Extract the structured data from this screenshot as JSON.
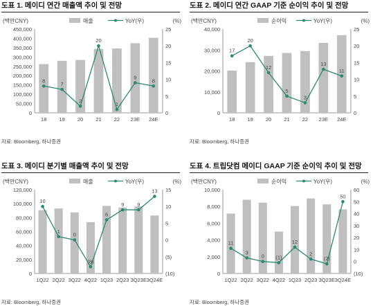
{
  "panels": [
    {
      "title": "도표 1. 메이디 연간 매출액 추이 및 전망",
      "source": "자료: Bloomberg, 하나증권",
      "unit_left": "(백만CNY)",
      "unit_right": "(%)",
      "legend_bar": "매출",
      "legend_line": "YoY(우)"
    },
    {
      "title": "도표 2. 메이디 연간 GAAP 기준 순이익 추이 및 전망",
      "source": "자료: Bloomberg, 하나증권",
      "unit_left": "(백만CNY)",
      "unit_right": "(%)",
      "legend_bar": "순이익",
      "legend_line": "YoY(우)"
    },
    {
      "title": "도표 3. 메이디 분기별 매출액 추이 및 전망",
      "source": "자료: Bloomberg, 하나증권",
      "unit_left": "(백만CNY)",
      "unit_right": "(%)",
      "legend_bar": "매출",
      "legend_line": "YoY(우)"
    },
    {
      "title": "도표 4. 트립닷컴 메이디 GAAP 기준 순이익 추이 및 전망",
      "source": "자료: Bloomberg, 하나증권",
      "unit_left": "(백만CNY)",
      "unit_right": "(%)",
      "legend_bar": "순이익",
      "legend_line": "YoY(우)"
    }
  ],
  "colors": {
    "bar": "#bfbfbf",
    "line": "#2a8a72",
    "axis": "#9a9a9a",
    "text": "#444444"
  },
  "chart_data": [
    {
      "type": "bar",
      "categories": [
        "18",
        "19",
        "20",
        "21",
        "22",
        "23E",
        "24E"
      ],
      "series": [
        {
          "name": "매출",
          "axis": "left",
          "values": [
            261800,
            279400,
            284200,
            343400,
            345700,
            374000,
            403000
          ]
        },
        {
          "name": "YoY(우)",
          "type": "line",
          "axis": "right",
          "values": [
            8,
            7,
            2,
            20,
            1,
            9,
            8
          ],
          "labels": [
            "8",
            "7",
            "2",
            "20",
            "1",
            "9",
            "8"
          ]
        }
      ],
      "ylim_left": [
        0,
        450000
      ],
      "yticks_left": [
        "0",
        "50,000",
        "100,000",
        "150,000",
        "200,000",
        "250,000",
        "300,000",
        "350,000",
        "400,000",
        "450,000"
      ],
      "ylim_right": [
        0,
        25
      ],
      "yticks_right": [
        "0",
        "5",
        "10",
        "15",
        "20",
        "25"
      ]
    },
    {
      "type": "bar",
      "categories": [
        "18",
        "19",
        "20",
        "21",
        "22",
        "23E",
        "24E"
      ],
      "series": [
        {
          "name": "순이익",
          "axis": "left",
          "values": [
            20200,
            24200,
            27200,
            28600,
            29500,
            33400,
            37100
          ]
        },
        {
          "name": "YoY(우)",
          "type": "line",
          "axis": "right",
          "values": [
            17,
            20,
            12,
            5,
            3,
            13,
            11
          ],
          "labels": [
            "17",
            "20",
            "12",
            "5",
            "3",
            "13",
            "11"
          ]
        }
      ],
      "ylim_left": [
        0,
        40000
      ],
      "yticks_left": [
        "0",
        "10,000",
        "20,000",
        "30,000",
        "40,000"
      ],
      "ylim_right": [
        0,
        25
      ],
      "yticks_right": [
        "0",
        "5",
        "10",
        "15",
        "20",
        "25"
      ]
    },
    {
      "type": "bar",
      "categories": [
        "1Q22",
        "2Q22",
        "3Q22",
        "4Q22",
        "1Q23",
        "2Q23",
        "3Q23E",
        "3Q24E"
      ],
      "series": [
        {
          "name": "매출",
          "axis": "left",
          "values": [
            90600,
            93000,
            87500,
            73500,
            96800,
            94500,
            96000,
            83000
          ]
        },
        {
          "name": "YoY(우)",
          "type": "line",
          "axis": "right",
          "values": [
            10,
            1,
            0,
            -8,
            6,
            9,
            9,
            13
          ],
          "labels": [
            "10",
            "1",
            "0",
            "(8)",
            "6",
            "9",
            "9",
            "13"
          ]
        }
      ],
      "ylim_left": [
        0,
        120000
      ],
      "yticks_left": [
        "0",
        "20,000",
        "40,000",
        "60,000",
        "80,000",
        "100,000",
        "120,000"
      ],
      "ylim_right": [
        -10,
        15
      ],
      "yticks_right": [
        "(10)",
        "(5)",
        "0",
        "5",
        "10",
        "15"
      ]
    },
    {
      "type": "bar",
      "categories": [
        "1Q22",
        "2Q22",
        "3Q22",
        "4Q22",
        "1Q23",
        "2Q23",
        "3Q23E",
        "3Q24E"
      ],
      "series": [
        {
          "name": "순이익",
          "axis": "left",
          "values": [
            7150,
            8800,
            8450,
            5000,
            8050,
            8950,
            8250,
            7650
          ]
        },
        {
          "name": "YoY(우)",
          "type": "line",
          "axis": "right",
          "values": [
            11,
            3,
            0,
            -1,
            12,
            2,
            -2,
            50
          ],
          "labels": [
            "11",
            "3",
            "0",
            "(1)",
            "12",
            "2",
            "(2)",
            "50"
          ]
        }
      ],
      "ylim_left": [
        0,
        10000
      ],
      "yticks_left": [
        "0",
        "2,000",
        "4,000",
        "6,000",
        "8,000",
        "10,000"
      ],
      "ylim_right": [
        -10,
        60
      ],
      "yticks_right": [
        "(10)",
        "0",
        "10",
        "20",
        "30",
        "40",
        "50",
        "60"
      ]
    }
  ]
}
